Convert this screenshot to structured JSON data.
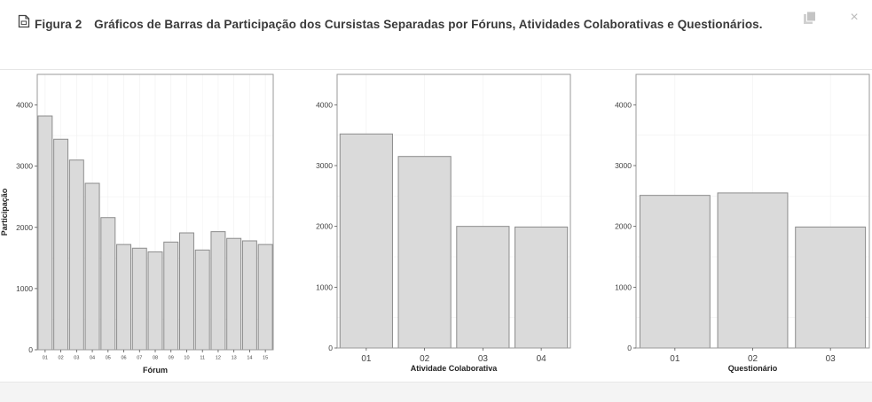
{
  "figure": {
    "number": "Figura 2",
    "caption": "Gráficos de Barras da Participação dos Cursistas Separadas por Fóruns, Atividades Colaborativas e Questionários."
  },
  "toolbar": {
    "copy_icon": "copy-icon",
    "close_icon": "close-icon",
    "close_glyph": "×"
  },
  "colors": {
    "bar_fill": "#dadada",
    "bar_stroke": "#8c8c8c",
    "panel_border": "#9a9a9a",
    "grid": "#f0f0f0"
  },
  "chart_data": [
    {
      "type": "bar",
      "xlabel": "Fórum",
      "ylabel": "Participação",
      "ylim": [
        0,
        4500
      ],
      "yticks": [
        0,
        1000,
        2000,
        3000,
        4000
      ],
      "categories": [
        "01",
        "02",
        "03",
        "04",
        "05",
        "06",
        "07",
        "08",
        "09",
        "10",
        "11",
        "12",
        "13",
        "14",
        "15"
      ],
      "values": [
        3820,
        3440,
        3100,
        2720,
        2160,
        1720,
        1660,
        1600,
        1760,
        1910,
        1630,
        1930,
        1820,
        1780,
        1720
      ]
    },
    {
      "type": "bar",
      "xlabel": "Atividade Colaborativa",
      "ylabel": "",
      "ylim": [
        0,
        4500
      ],
      "yticks": [
        0,
        1000,
        2000,
        3000,
        4000
      ],
      "categories": [
        "01",
        "02",
        "03",
        "04"
      ],
      "values": [
        3520,
        3150,
        2000,
        1990
      ]
    },
    {
      "type": "bar",
      "xlabel": "Questionário",
      "ylabel": "",
      "ylim": [
        0,
        4500
      ],
      "yticks": [
        0,
        1000,
        2000,
        3000,
        4000
      ],
      "categories": [
        "01",
        "02",
        "03"
      ],
      "values": [
        2510,
        2550,
        1990
      ]
    }
  ]
}
